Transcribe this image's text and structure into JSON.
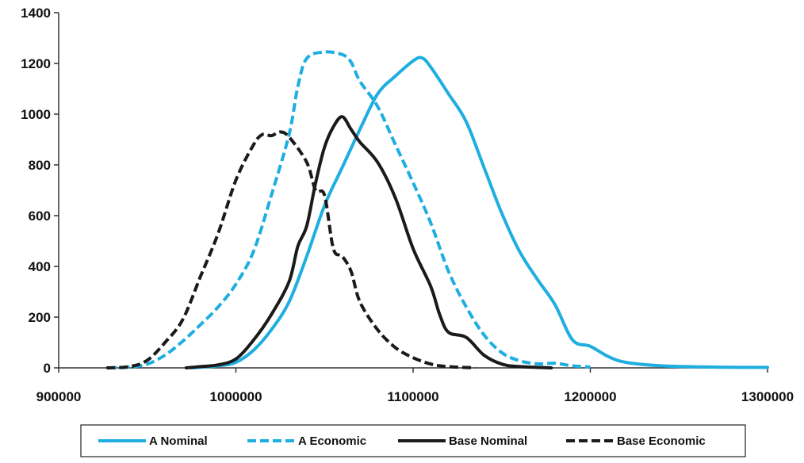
{
  "chart_data": {
    "type": "line",
    "title": "",
    "xlabel": "",
    "ylabel": "",
    "xlim": [
      900000,
      1300000
    ],
    "ylim": [
      0,
      1400
    ],
    "x_ticks": [
      900000,
      1000000,
      1100000,
      1200000,
      1300000
    ],
    "y_ticks": [
      0,
      200,
      400,
      600,
      800,
      1000,
      1200,
      1400
    ],
    "x_tick_labels": [
      "900000",
      "1000000",
      "1100000",
      "1200000",
      "1300000"
    ],
    "y_tick_labels": [
      "0",
      "200",
      "400",
      "600",
      "800",
      "1000",
      "1200",
      "1400"
    ],
    "grid": false,
    "legend": "bottom",
    "series": [
      {
        "name": "A Nominal",
        "color": "#1eaee0",
        "dash": "solid",
        "points": [
          [
            975000,
            0
          ],
          [
            990000,
            8
          ],
          [
            1000000,
            22
          ],
          [
            1010000,
            70
          ],
          [
            1020000,
            150
          ],
          [
            1030000,
            260
          ],
          [
            1040000,
            440
          ],
          [
            1050000,
            640
          ],
          [
            1060000,
            790
          ],
          [
            1070000,
            940
          ],
          [
            1080000,
            1080
          ],
          [
            1090000,
            1150
          ],
          [
            1100000,
            1210
          ],
          [
            1105000,
            1222
          ],
          [
            1110000,
            1185
          ],
          [
            1120000,
            1080
          ],
          [
            1130000,
            970
          ],
          [
            1140000,
            790
          ],
          [
            1150000,
            610
          ],
          [
            1160000,
            460
          ],
          [
            1170000,
            350
          ],
          [
            1180000,
            250
          ],
          [
            1190000,
            110
          ],
          [
            1200000,
            85
          ],
          [
            1210000,
            45
          ],
          [
            1220000,
            22
          ],
          [
            1240000,
            8
          ],
          [
            1270000,
            3
          ],
          [
            1300000,
            2
          ]
        ]
      },
      {
        "name": "A Economic",
        "color": "#1eaee0",
        "dash": "dashed",
        "points": [
          [
            928000,
            0
          ],
          [
            940000,
            3
          ],
          [
            950000,
            15
          ],
          [
            960000,
            50
          ],
          [
            970000,
            105
          ],
          [
            980000,
            170
          ],
          [
            990000,
            240
          ],
          [
            1000000,
            330
          ],
          [
            1010000,
            460
          ],
          [
            1020000,
            680
          ],
          [
            1030000,
            920
          ],
          [
            1035000,
            1110
          ],
          [
            1040000,
            1220
          ],
          [
            1050000,
            1245
          ],
          [
            1060000,
            1235
          ],
          [
            1065000,
            1205
          ],
          [
            1070000,
            1130
          ],
          [
            1080000,
            1030
          ],
          [
            1090000,
            880
          ],
          [
            1100000,
            730
          ],
          [
            1110000,
            570
          ],
          [
            1120000,
            380
          ],
          [
            1130000,
            240
          ],
          [
            1140000,
            130
          ],
          [
            1150000,
            60
          ],
          [
            1160000,
            28
          ],
          [
            1170000,
            16
          ],
          [
            1180000,
            18
          ],
          [
            1190000,
            8
          ],
          [
            1200000,
            3
          ]
        ]
      },
      {
        "name": "Base Nominal",
        "color": "#1a1a1a",
        "dash": "solid",
        "points": [
          [
            972000,
            0
          ],
          [
            980000,
            5
          ],
          [
            990000,
            12
          ],
          [
            1000000,
            35
          ],
          [
            1010000,
            110
          ],
          [
            1020000,
            210
          ],
          [
            1030000,
            340
          ],
          [
            1035000,
            480
          ],
          [
            1040000,
            560
          ],
          [
            1045000,
            730
          ],
          [
            1050000,
            870
          ],
          [
            1055000,
            950
          ],
          [
            1060000,
            990
          ],
          [
            1065000,
            940
          ],
          [
            1070000,
            890
          ],
          [
            1080000,
            810
          ],
          [
            1090000,
            670
          ],
          [
            1100000,
            470
          ],
          [
            1110000,
            320
          ],
          [
            1115000,
            210
          ],
          [
            1120000,
            140
          ],
          [
            1130000,
            120
          ],
          [
            1140000,
            50
          ],
          [
            1150000,
            15
          ],
          [
            1160000,
            5
          ],
          [
            1178000,
            0
          ]
        ]
      },
      {
        "name": "Base Economic",
        "color": "#1a1a1a",
        "dash": "dashed",
        "points": [
          [
            927000,
            0
          ],
          [
            940000,
            5
          ],
          [
            950000,
            30
          ],
          [
            960000,
            100
          ],
          [
            970000,
            190
          ],
          [
            980000,
            360
          ],
          [
            990000,
            530
          ],
          [
            1000000,
            740
          ],
          [
            1010000,
            880
          ],
          [
            1015000,
            920
          ],
          [
            1020000,
            915
          ],
          [
            1025000,
            930
          ],
          [
            1030000,
            910
          ],
          [
            1040000,
            810
          ],
          [
            1045000,
            700
          ],
          [
            1050000,
            680
          ],
          [
            1055000,
            470
          ],
          [
            1060000,
            440
          ],
          [
            1065000,
            380
          ],
          [
            1070000,
            260
          ],
          [
            1080000,
            150
          ],
          [
            1090000,
            80
          ],
          [
            1100000,
            40
          ],
          [
            1110000,
            15
          ],
          [
            1120000,
            5
          ],
          [
            1135000,
            0
          ]
        ]
      }
    ]
  }
}
